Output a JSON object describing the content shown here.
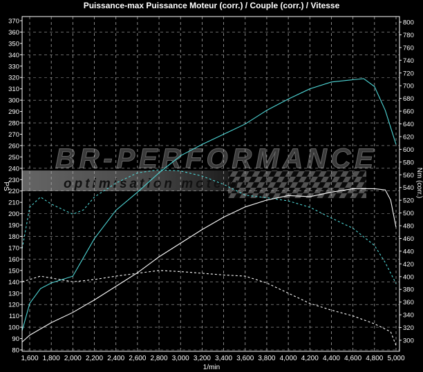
{
  "chart_data": {
    "type": "line",
    "title": "Puissance-max Puissance Moteur (corr.) / Couple (corr.) / Vitesse",
    "xlabel": "1/min",
    "ylabel": "PS",
    "y2label": "Nm (corr.)",
    "xlim": [
      1530,
      5020
    ],
    "ylim": [
      80,
      375
    ],
    "y2lim": [
      300,
      800
    ],
    "xticks": [
      1600,
      1800,
      2000,
      2200,
      2400,
      2600,
      2800,
      3000,
      3200,
      3400,
      3600,
      3800,
      4000,
      4200,
      4400,
      4600,
      4800,
      5000
    ],
    "xtick_labels": [
      "1,600",
      "1,800",
      "2,000",
      "2,200",
      "2,400",
      "2,600",
      "2,800",
      "3,000",
      "3,200",
      "3,400",
      "3,600",
      "3,800",
      "4,000",
      "4,200",
      "4,400",
      "4,600",
      "4,800",
      "5,000"
    ],
    "yticks": [
      80,
      90,
      100,
      110,
      120,
      130,
      140,
      150,
      160,
      170,
      180,
      190,
      200,
      210,
      220,
      230,
      240,
      250,
      260,
      270,
      280,
      290,
      300,
      310,
      320,
      330,
      340,
      350,
      360,
      370
    ],
    "y2ticks": [
      300,
      320,
      340,
      360,
      380,
      400,
      420,
      440,
      460,
      480,
      500,
      520,
      540,
      560,
      580,
      600,
      620,
      640,
      660,
      680,
      700,
      720,
      740,
      760,
      780,
      800
    ],
    "grid": true,
    "background": "#000000",
    "series": [
      {
        "axis": "left",
        "color": "#4fd8d8",
        "style": "solid",
        "x": [
          1530,
          1600,
          1700,
          1800,
          2000,
          2200,
          2400,
          2600,
          2800,
          3000,
          3200,
          3400,
          3600,
          3800,
          4000,
          4200,
          4400,
          4600,
          4700,
          4800,
          4900,
          5000
        ],
        "y": [
          97,
          121,
          134,
          139,
          145,
          178,
          203,
          219,
          236,
          251,
          261,
          270,
          279,
          291,
          301,
          310,
          316,
          318,
          319,
          312,
          291,
          261
        ]
      },
      {
        "axis": "right",
        "color": "#4fd8d8",
        "style": "dashed",
        "x": [
          1530,
          1600,
          1700,
          1800,
          2000,
          2100,
          2200,
          2400,
          2600,
          2800,
          3000,
          3200,
          3400,
          3600,
          3800,
          4000,
          4200,
          4400,
          4600,
          4800,
          4900,
          5000
        ],
        "y": [
          444,
          509,
          525,
          514,
          498,
          505,
          525,
          547,
          563,
          568,
          566,
          558,
          545,
          528,
          524,
          519,
          509,
          492,
          476,
          449,
          422,
          389
        ]
      },
      {
        "axis": "left",
        "color": "#ffffff",
        "style": "solid",
        "x": [
          1530,
          1600,
          1800,
          2000,
          2200,
          2400,
          2600,
          2800,
          3000,
          3200,
          3400,
          3600,
          3800,
          4000,
          4200,
          4400,
          4600,
          4800,
          4900,
          4950,
          5000
        ],
        "y": [
          87,
          93,
          104,
          113,
          124,
          136,
          148,
          162,
          174,
          186,
          197,
          206,
          212,
          216,
          215,
          219,
          222,
          222,
          221,
          212,
          188
        ]
      },
      {
        "axis": "left",
        "color": "#ffffff",
        "style": "dashed",
        "x": [
          1530,
          1700,
          2000,
          2200,
          2400,
          2800,
          3000,
          3400,
          3600,
          3800,
          4000,
          4200,
          4400,
          4600,
          4800,
          4950,
          5000
        ],
        "y": [
          140,
          145,
          140,
          142,
          145,
          150,
          149,
          146,
          145,
          139,
          130,
          121,
          115,
          110,
          103,
          96,
          84
        ]
      }
    ]
  },
  "watermark": {
    "brand": "BR-Performance",
    "tagline": "optimisation moteur"
  }
}
